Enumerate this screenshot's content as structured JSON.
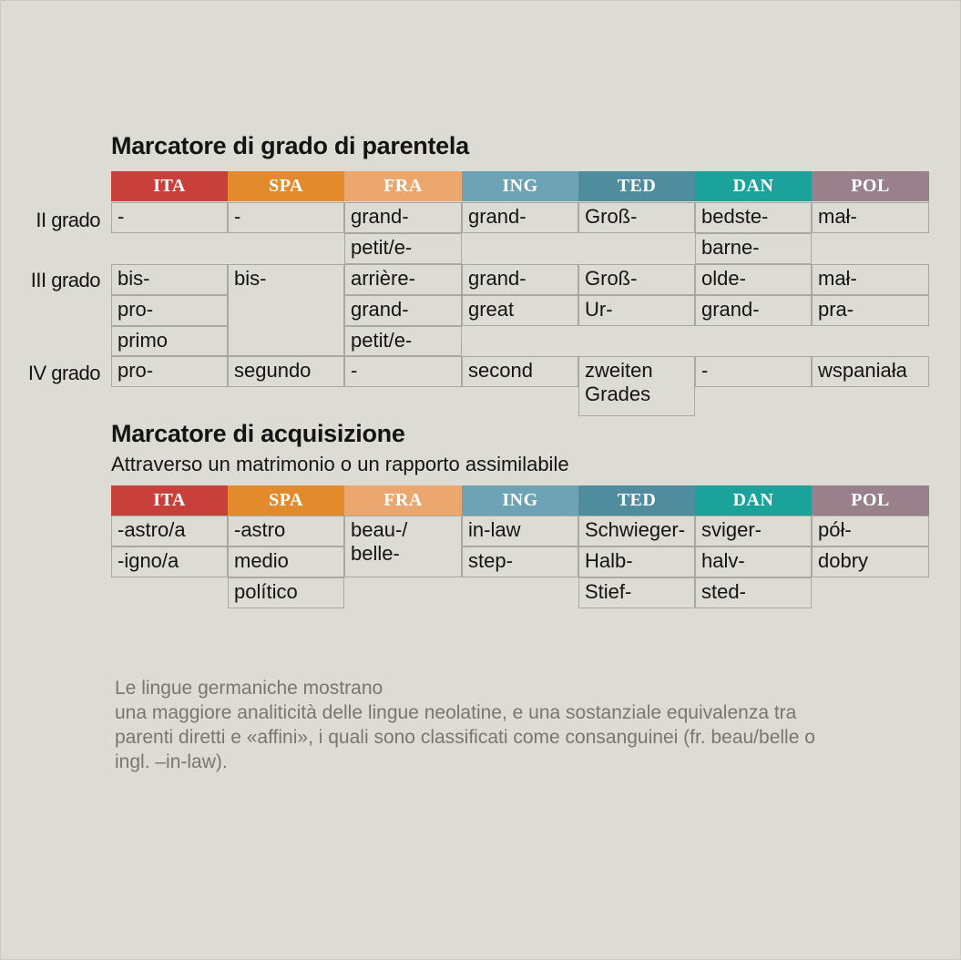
{
  "section1": {
    "title": "Marcatore di grado di parentela",
    "headers": [
      {
        "label": "ITA",
        "color": "#c9403a"
      },
      {
        "label": "SPA",
        "color": "#e38b2c"
      },
      {
        "label": "FRA",
        "color": "#eca76e"
      },
      {
        "label": "ING",
        "color": "#6ea3b5"
      },
      {
        "label": "TED",
        "color": "#4f8c9d"
      },
      {
        "label": "DAN",
        "color": "#1ba29a"
      },
      {
        "label": "POL",
        "color": "#9a808a"
      }
    ],
    "row_labels": [
      "II grado",
      "III grado",
      "IV grado"
    ],
    "cells": {
      "ii_ita": "-",
      "ii_spa": "-",
      "ii_fra_1": "grand-",
      "ii_fra_2": "petit/e-",
      "ii_ing": "grand-",
      "ii_ted": "Groß-",
      "ii_dan_1": "bedste-",
      "ii_dan_2": "barne-",
      "ii_pol": "mał-",
      "iii_ita_1": "bis-",
      "iii_ita_2": "pro-",
      "iii_ita_3": "primo",
      "iii_spa": "bis-",
      "iii_fra_1": "arrière-",
      "iii_fra_2": "grand-",
      "iii_fra_3": "petit/e-",
      "iii_ing_1": "grand-",
      "iii_ing_2": "great",
      "iii_ted_1": "Groß-",
      "iii_ted_2": "Ur-",
      "iii_dan_1": "olde-",
      "iii_dan_2": "grand-",
      "iii_pol_1": "mał-",
      "iii_pol_2": "pra-",
      "iv_ita": "pro-",
      "iv_spa": "segundo",
      "iv_fra": "-",
      "iv_ing": "second",
      "iv_ted_1": "zweiten",
      "iv_ted_2": "Grades",
      "iv_dan": "-",
      "iv_pol": "wspaniała"
    }
  },
  "section2": {
    "title": "Marcatore di acquisizione",
    "subtitle": "Attraverso un matrimonio o un rapporto assimilabile",
    "cells": {
      "ita_1": "-astro/a",
      "ita_2": "-igno/a",
      "spa_1": "-astro",
      "spa_2": "medio",
      "spa_3": "político",
      "fra_1": "beau-/",
      "fra_2": "belle-",
      "ing_1": "in-law",
      "ing_2": "step-",
      "ted_1": "Schwieger-",
      "ted_2": "Halb-",
      "ted_3": "Stief-",
      "dan_1": "sviger-",
      "dan_2": "halv-",
      "dan_3": "sted-",
      "pol_1": "pół-",
      "pol_2": "dobry"
    }
  },
  "note": {
    "line1": "Le lingue germaniche mostrano",
    "line2": "una maggiore analiticità delle lingue neolatine, e una sostanziale equivalenza tra",
    "line3": "parenti diretti e «affini», i quali sono classificati come consanguinei (fr. beau/belle o",
    "line4": "ingl. –in-law)."
  }
}
